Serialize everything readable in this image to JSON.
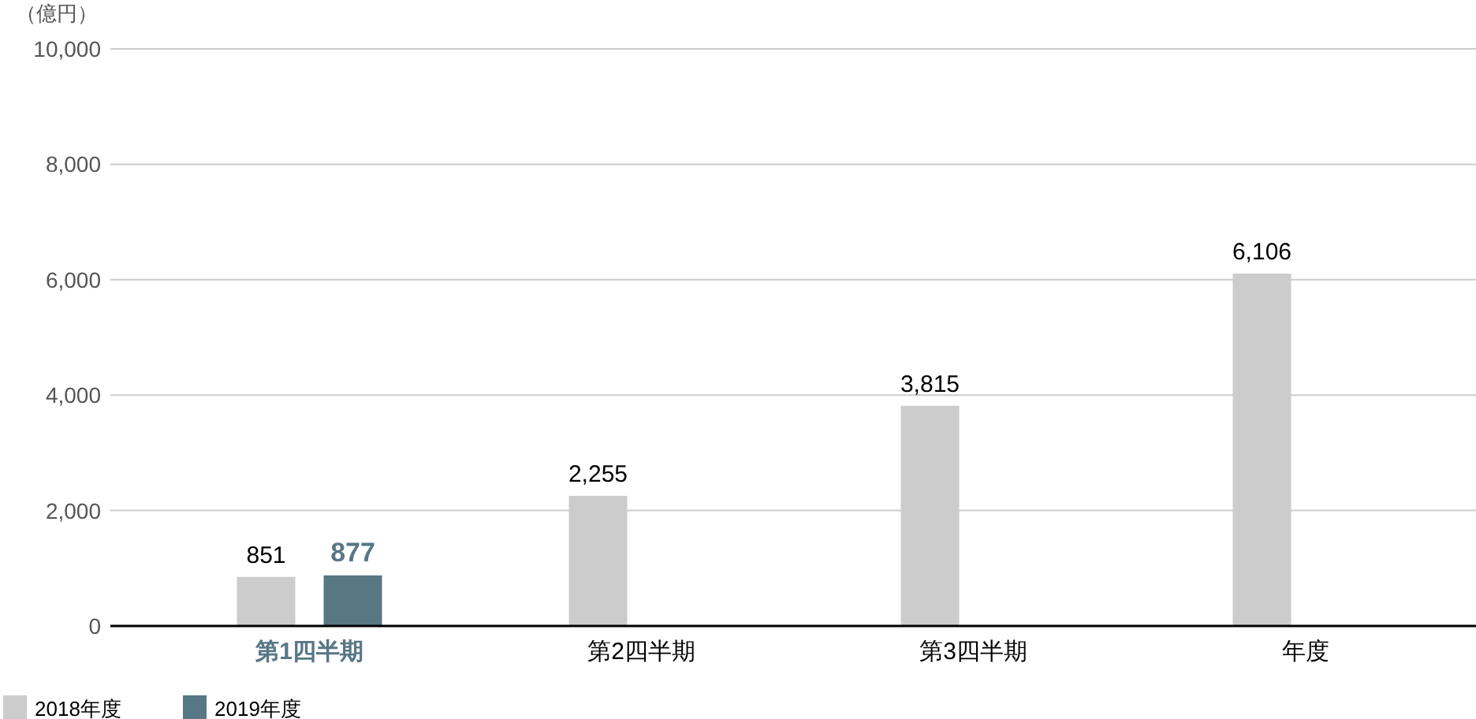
{
  "chart_data": {
    "type": "bar",
    "ylabel": "（億円）",
    "categories": [
      "第1四半期",
      "第2四半期",
      "第3四半期",
      "年度"
    ],
    "series": [
      {
        "name": "2018年度",
        "color": "#cccccc",
        "values": [
          851,
          2255,
          3815,
          6106
        ],
        "value_labels": [
          "851",
          "2,255",
          "3,815",
          "6,106"
        ]
      },
      {
        "name": "2019年度",
        "color": "#587785",
        "values": [
          877,
          null,
          null,
          null
        ],
        "value_labels": [
          "877",
          null,
          null,
          null
        ]
      }
    ],
    "ylim": [
      0,
      10000
    ],
    "yticks": [
      0,
      {
        "value": 2000,
        "label": "2,000"
      },
      {
        "value": 4000,
        "label": "4,000"
      },
      {
        "value": 6000,
        "label": "6,000"
      },
      {
        "value": 8000,
        "label": "8,000"
      },
      {
        "value": 10000,
        "label": "10,000"
      }
    ],
    "grid": "y",
    "legend": "bottom"
  }
}
